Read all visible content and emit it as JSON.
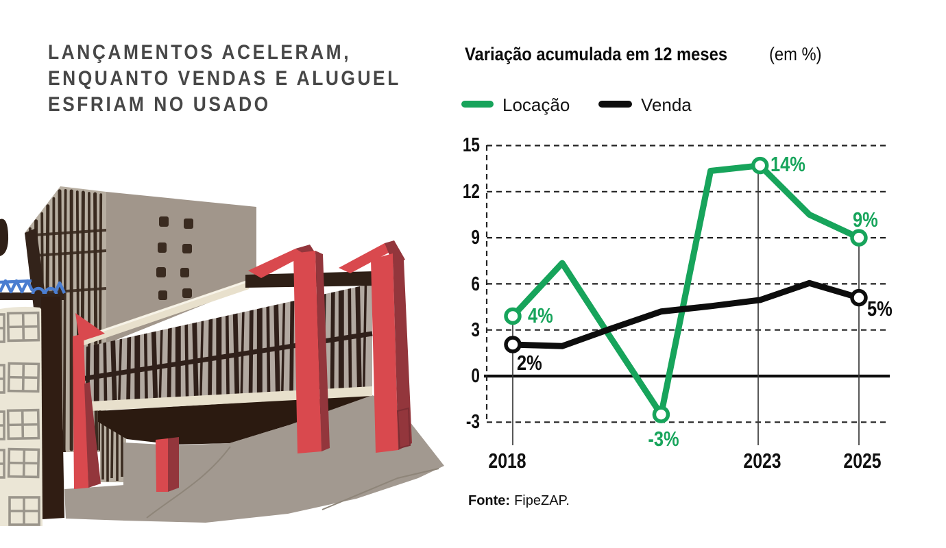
{
  "headline": {
    "lines": [
      "LANÇAMENTOS ACELERAM,",
      "ENQUANTO VENDAS E ALUGUEL",
      "ESFRIAM NO USADO"
    ]
  },
  "chart": {
    "title_bold": "Variação acumulada em 12 meses",
    "title_note": "(em %)",
    "legend": [
      {
        "label": "Locação",
        "color": "#17a45b"
      },
      {
        "label": "Venda",
        "color": "#0d0d0d"
      }
    ],
    "y_ticks": [
      "15",
      "12",
      "9",
      "6",
      "3",
      "0",
      "-3"
    ],
    "x_ticks": [
      "2018",
      "2023",
      "2025"
    ],
    "point_labels": {
      "locacao_2018": "4%",
      "venda_2018": "2%",
      "locacao_2021": "-3%",
      "locacao_2023": "14%",
      "locacao_2025": "9%",
      "venda_2025": "5%"
    }
  },
  "source": {
    "label_bold": "Fonte:",
    "text": "FipeZAP."
  },
  "colors": {
    "accent_green": "#17a45b",
    "series_black": "#0d0d0d",
    "headline_gray": "#474747"
  },
  "chart_data": {
    "type": "line",
    "title": "Variação acumulada em 12 meses (em %)",
    "x": [
      2018,
      2019,
      2020,
      2021,
      2022,
      2023,
      2024,
      2025
    ],
    "series": [
      {
        "name": "Locação",
        "color": "#17a45b",
        "values": [
          3.9,
          7.35,
          2.4,
          -2.5,
          13.35,
          13.7,
          10.5,
          9.0
        ],
        "markers": [
          2018,
          2021,
          2023,
          2025
        ],
        "labeled_points": {
          "2018": "4%",
          "2021": "-3%",
          "2023": "14%",
          "2025": "9%"
        }
      },
      {
        "name": "Venda",
        "color": "#0d0d0d",
        "values": [
          2.05,
          1.95,
          3.1,
          4.2,
          4.55,
          4.95,
          6.05,
          5.1
        ],
        "markers": [
          2018,
          2025
        ],
        "labeled_points": {
          "2018": "2%",
          "2025": "5%"
        }
      }
    ],
    "ylim": [
      -3,
      15
    ],
    "yticks": [
      15,
      12,
      9,
      6,
      3,
      0,
      -3
    ],
    "xtick_years": [
      2018,
      2023,
      2025
    ],
    "grid": "dashed-horizontal",
    "legend_position": "top-left",
    "source": "Fonte: FipeZAP."
  }
}
